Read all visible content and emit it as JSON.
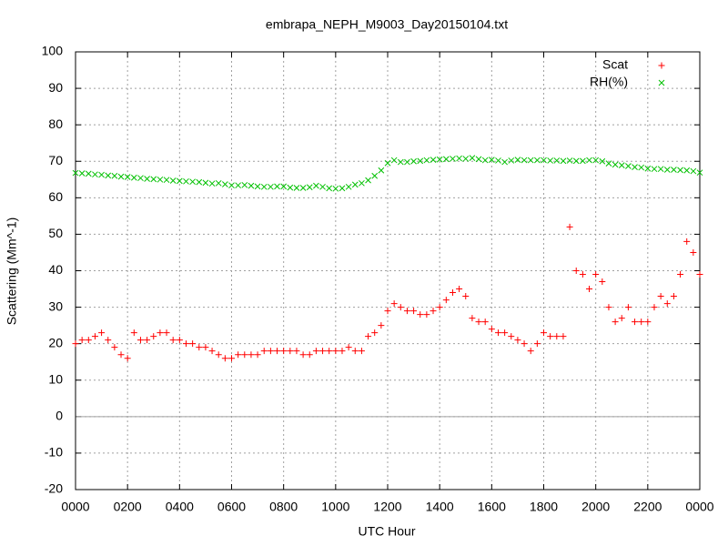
{
  "chart_data": {
    "type": "scatter",
    "title": "embrapa_NEPH_M9003_Day20150104.txt",
    "x_label": "UTC Hour",
    "y_label": "Scattering (Mm^-1)",
    "x": [
      0,
      0.25,
      0.5,
      0.75,
      1,
      1.25,
      1.5,
      1.75,
      2,
      2.25,
      2.5,
      2.75,
      3,
      3.25,
      3.5,
      3.75,
      4,
      4.25,
      4.5,
      4.75,
      5,
      5.25,
      5.5,
      5.75,
      6,
      6.25,
      6.5,
      6.75,
      7,
      7.25,
      7.5,
      7.75,
      8,
      8.25,
      8.5,
      8.75,
      9,
      9.25,
      9.5,
      9.75,
      10,
      10.25,
      10.5,
      10.75,
      11,
      11.25,
      11.5,
      11.75,
      12,
      12.25,
      12.5,
      12.75,
      13,
      13.25,
      13.5,
      13.75,
      14,
      14.25,
      14.5,
      14.75,
      15,
      15.25,
      15.5,
      15.75,
      16,
      16.25,
      16.5,
      16.75,
      17,
      17.25,
      17.5,
      17.75,
      18,
      18.25,
      18.5,
      18.75,
      19,
      19.25,
      19.5,
      19.75,
      20,
      20.25,
      20.5,
      20.75,
      21,
      21.25,
      21.5,
      21.75,
      22,
      22.25,
      22.5,
      22.75,
      23,
      23.25,
      23.5,
      23.75,
      24
    ],
    "series": [
      {
        "name": "Scat",
        "color": "#ff0000",
        "marker": "plus",
        "values": [
          20,
          21,
          21,
          22,
          23,
          21,
          19,
          17,
          16,
          23,
          21,
          21,
          22,
          23,
          23,
          21,
          21,
          20,
          20,
          19,
          19,
          18,
          17,
          16,
          16,
          17,
          17,
          17,
          17,
          18,
          18,
          18,
          18,
          18,
          18,
          17,
          17,
          18,
          18,
          18,
          18,
          18,
          19,
          18,
          18,
          22,
          23,
          25,
          29,
          31,
          30,
          29,
          29,
          28,
          28,
          29,
          30,
          32,
          34,
          35,
          33,
          27,
          26,
          26,
          24,
          23,
          23,
          22,
          21,
          20,
          18,
          20,
          23,
          22,
          22,
          22,
          52,
          40,
          39,
          35,
          39,
          37,
          30,
          26,
          27,
          30,
          26,
          26,
          26,
          30,
          33,
          31,
          33,
          39,
          48,
          45,
          39
        ]
      },
      {
        "name": "RH(%)",
        "color": "#00c000",
        "marker": "cross",
        "values": [
          66.8,
          66.7,
          66.6,
          66.4,
          66.3,
          66.1,
          66.0,
          65.8,
          65.7,
          65.5,
          65.4,
          65.2,
          65.1,
          65.0,
          64.9,
          64.7,
          64.6,
          64.5,
          64.4,
          64.3,
          64.1,
          63.9,
          64.0,
          63.7,
          63.4,
          63.4,
          63.5,
          63.3,
          63.1,
          63.0,
          63.0,
          63.1,
          63.1,
          62.8,
          62.7,
          62.7,
          62.9,
          63.3,
          63.0,
          62.6,
          62.5,
          62.6,
          63.0,
          63.6,
          64.0,
          64.8,
          66.0,
          67.5,
          69.5,
          70.3,
          69.8,
          69.8,
          70.0,
          70.1,
          70.3,
          70.4,
          70.5,
          70.6,
          70.7,
          70.8,
          70.7,
          70.9,
          70.6,
          70.3,
          70.4,
          70.2,
          69.8,
          70.2,
          70.4,
          70.3,
          70.3,
          70.3,
          70.3,
          70.2,
          70.2,
          70.1,
          70.2,
          70.1,
          70.1,
          70.3,
          70.3,
          70.0,
          69.4,
          69.1,
          68.9,
          68.7,
          68.4,
          68.3,
          68.0,
          67.9,
          67.9,
          67.7,
          67.7,
          67.6,
          67.5,
          67.3,
          66.9
        ]
      }
    ],
    "xlim": [
      0,
      24
    ],
    "xticks": [
      {
        "value": 0,
        "label": "0000"
      },
      {
        "value": 2,
        "label": "0200"
      },
      {
        "value": 4,
        "label": "0400"
      },
      {
        "value": 6,
        "label": "0600"
      },
      {
        "value": 8,
        "label": "0800"
      },
      {
        "value": 10,
        "label": "1000"
      },
      {
        "value": 12,
        "label": "1200"
      },
      {
        "value": 14,
        "label": "1400"
      },
      {
        "value": 16,
        "label": "1600"
      },
      {
        "value": 18,
        "label": "1800"
      },
      {
        "value": 20,
        "label": "2000"
      },
      {
        "value": 22,
        "label": "2200"
      },
      {
        "value": 24,
        "label": "0000"
      }
    ],
    "ylim": [
      -20,
      100
    ],
    "yticks": [
      -20,
      -10,
      0,
      10,
      20,
      30,
      40,
      50,
      60,
      70,
      80,
      90,
      100
    ],
    "grid": true,
    "zero_axis": true,
    "legend": "top-right"
  }
}
